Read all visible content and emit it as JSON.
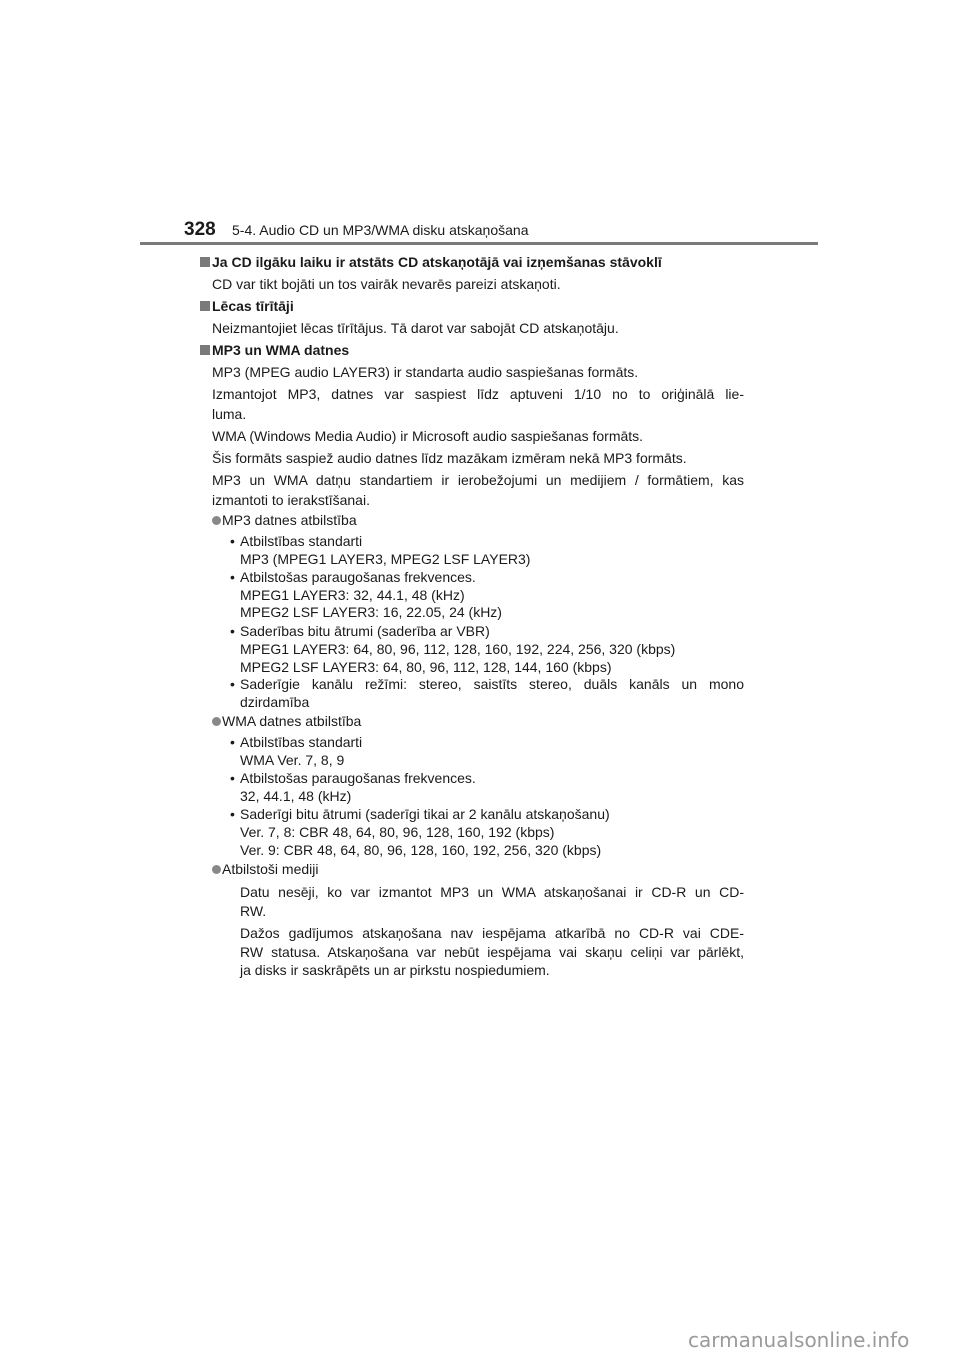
{
  "header": {
    "page_number": "328",
    "section_title": "5-4. Audio CD un MP3/WMA disku atskaņošana"
  },
  "sections": [
    {
      "heading": "Ja CD ilgāku laiku ir atstāts CD atskaņotājā vai izņemšanas stāvoklī",
      "lines": [
        "CD var tikt bojāti un tos vairāk nevarēs pareizi atskaņoti."
      ]
    },
    {
      "heading": "Lēcas tīrītāji",
      "lines": [
        "Neizmantojiet lēcas tīrītājus. Tā darot var sabojāt CD atskaņotāju."
      ]
    },
    {
      "heading": "MP3 un WMA datnes",
      "lines": [
        "MP3 (MPEG audio LAYER3) ir standarta audio saspiešanas formāts.",
        "Izmantojot MP3, datnes var saspiest līdz aptuveni 1/10 no to oriģinālā lie-",
        "luma.",
        "WMA (Windows Media Audio) ir Microsoft audio saspiešanas formāts.",
        "Šis formāts saspiež audio datnes līdz mazākam izmēram nekā MP3 formāts.",
        "MP3 un WMA datņu standartiem ir ierobežojumi un medijiem / formātiem, kas",
        "izmantoti to ierakstīšanai."
      ]
    }
  ],
  "mp3": {
    "title": "MP3 datnes atbilstība",
    "lines": [
      "Atbilstības standarti",
      "MP3 (MPEG1 LAYER3, MPEG2 LSF LAYER3)",
      "Atbilstošas paraugošanas frekvences.",
      "MPEG1 LAYER3: 32, 44.1, 48 (kHz)",
      "MPEG2 LSF LAYER3: 16, 22.05, 24 (kHz)",
      "Saderības bitu ātrumi (saderība ar VBR)",
      "MPEG1 LAYER3: 64, 80, 96, 112, 128, 160, 192, 224, 256, 320 (kbps)",
      "MPEG2 LSF LAYER3: 64, 80, 96, 112, 128, 144, 160 (kbps)",
      "Saderīgie kanālu režīmi: stereo, saistīts stereo, duāls kanāls un mono",
      "dzirdamība"
    ]
  },
  "wma": {
    "title": "WMA datnes atbilstība",
    "lines": [
      "Atbilstības standarti",
      "WMA Ver. 7, 8, 9",
      "Atbilstošas paraugošanas frekvences.",
      "32, 44.1, 48 (kHz)",
      "Saderīgi bitu ātrumi (saderīgi tikai ar 2 kanālu atskaņošanu)",
      "Ver. 7, 8: CBR 48, 64, 80, 96, 128, 160, 192 (kbps)",
      "Ver. 9: CBR 48, 64, 80, 96, 128, 160, 192, 256, 320 (kbps)"
    ]
  },
  "media": {
    "title": "Atbilstoši mediji",
    "lines": [
      "Datu nesēji, ko var izmantot MP3 un WMA atskaņošanai ir CD-R un CD-",
      "RW.",
      "Dažos gadījumos atskaņošana nav iespējama atkarībā no CD-R vai CDE-",
      "RW statusa. Atskaņošana var nebūt iespējama vai skaņu celiņi var pārlēkt,",
      "ja disks ir saskrāpēts un ar pirkstu nospiedumiem."
    ]
  },
  "bullet_symbol": "•",
  "watermark": "carmanualsonline.info"
}
